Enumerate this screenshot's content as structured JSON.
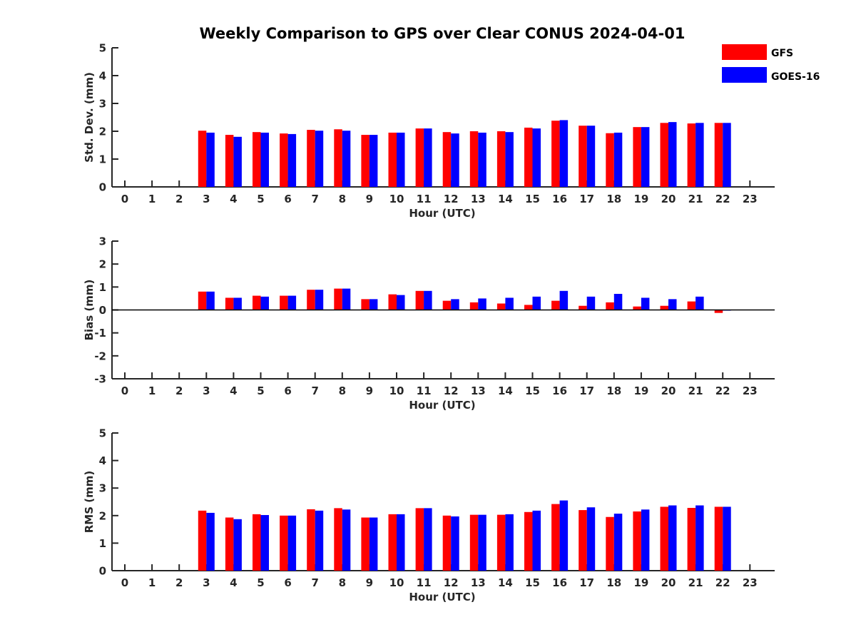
{
  "figure": {
    "title": "Weekly Comparison to GPS over Clear CONUS 2024-04-01"
  },
  "legend": {
    "placement": "top-right",
    "entries": [
      {
        "name": "GFS",
        "color": "#ff0000"
      },
      {
        "name": "GOES-16",
        "color": "#0000ff"
      }
    ]
  },
  "chart_data": [
    {
      "type": "bar",
      "xlabel": "Hour (UTC)",
      "ylabel": "Std. Dev. (mm)",
      "ylim": [
        0,
        5
      ],
      "yticks": [
        0,
        1,
        2,
        3,
        4,
        5
      ],
      "x": [
        0,
        1,
        2,
        3,
        4,
        5,
        6,
        7,
        8,
        9,
        10,
        11,
        12,
        13,
        14,
        15,
        16,
        17,
        18,
        19,
        20,
        21,
        22,
        23
      ],
      "series": [
        {
          "name": "GFS",
          "values": [
            null,
            null,
            null,
            2.02,
            1.87,
            1.97,
            1.92,
            2.05,
            2.07,
            1.87,
            1.95,
            2.1,
            1.97,
            2.0,
            2.0,
            2.13,
            2.38,
            2.2,
            1.93,
            2.15,
            2.3,
            2.28,
            2.3,
            null
          ]
        },
        {
          "name": "GOES-16",
          "values": [
            null,
            null,
            null,
            1.95,
            1.8,
            1.95,
            1.9,
            2.02,
            2.02,
            1.87,
            1.95,
            2.1,
            1.92,
            1.95,
            1.97,
            2.1,
            2.4,
            2.2,
            1.95,
            2.15,
            2.33,
            2.3,
            2.3,
            null
          ]
        }
      ]
    },
    {
      "type": "bar",
      "xlabel": "Hour (UTC)",
      "ylabel": "Bias (mm)",
      "ylim": [
        -3,
        3
      ],
      "yticks": [
        -3,
        -2,
        -1,
        0,
        1,
        2,
        3
      ],
      "zero_line": true,
      "x": [
        0,
        1,
        2,
        3,
        4,
        5,
        6,
        7,
        8,
        9,
        10,
        11,
        12,
        13,
        14,
        15,
        16,
        17,
        18,
        19,
        20,
        21,
        22,
        23
      ],
      "series": [
        {
          "name": "GFS",
          "values": [
            null,
            null,
            null,
            0.8,
            0.53,
            0.62,
            0.62,
            0.88,
            0.93,
            0.47,
            0.68,
            0.83,
            0.4,
            0.33,
            0.28,
            0.22,
            0.4,
            0.18,
            0.33,
            0.15,
            0.18,
            0.37,
            -0.13,
            null
          ]
        },
        {
          "name": "GOES-16",
          "values": [
            null,
            null,
            null,
            0.8,
            0.53,
            0.58,
            0.62,
            0.88,
            0.93,
            0.47,
            0.65,
            0.83,
            0.47,
            0.5,
            0.53,
            0.58,
            0.83,
            0.58,
            0.7,
            0.53,
            0.47,
            0.58,
            -0.03,
            null
          ]
        }
      ]
    },
    {
      "type": "bar",
      "xlabel": "Hour (UTC)",
      "ylabel": "RMS (mm)",
      "ylim": [
        0,
        5
      ],
      "yticks": [
        0,
        1,
        2,
        3,
        4,
        5
      ],
      "x": [
        0,
        1,
        2,
        3,
        4,
        5,
        6,
        7,
        8,
        9,
        10,
        11,
        12,
        13,
        14,
        15,
        16,
        17,
        18,
        19,
        20,
        21,
        22,
        23
      ],
      "series": [
        {
          "name": "GFS",
          "values": [
            null,
            null,
            null,
            2.18,
            1.93,
            2.05,
            2.0,
            2.23,
            2.27,
            1.93,
            2.05,
            2.27,
            2.0,
            2.03,
            2.03,
            2.13,
            2.42,
            2.2,
            1.95,
            2.15,
            2.32,
            2.28,
            2.32,
            null
          ]
        },
        {
          "name": "GOES-16",
          "values": [
            null,
            null,
            null,
            2.1,
            1.87,
            2.02,
            2.0,
            2.18,
            2.22,
            1.93,
            2.05,
            2.27,
            1.97,
            2.03,
            2.05,
            2.18,
            2.55,
            2.3,
            2.07,
            2.22,
            2.37,
            2.37,
            2.32,
            null
          ]
        }
      ]
    }
  ]
}
